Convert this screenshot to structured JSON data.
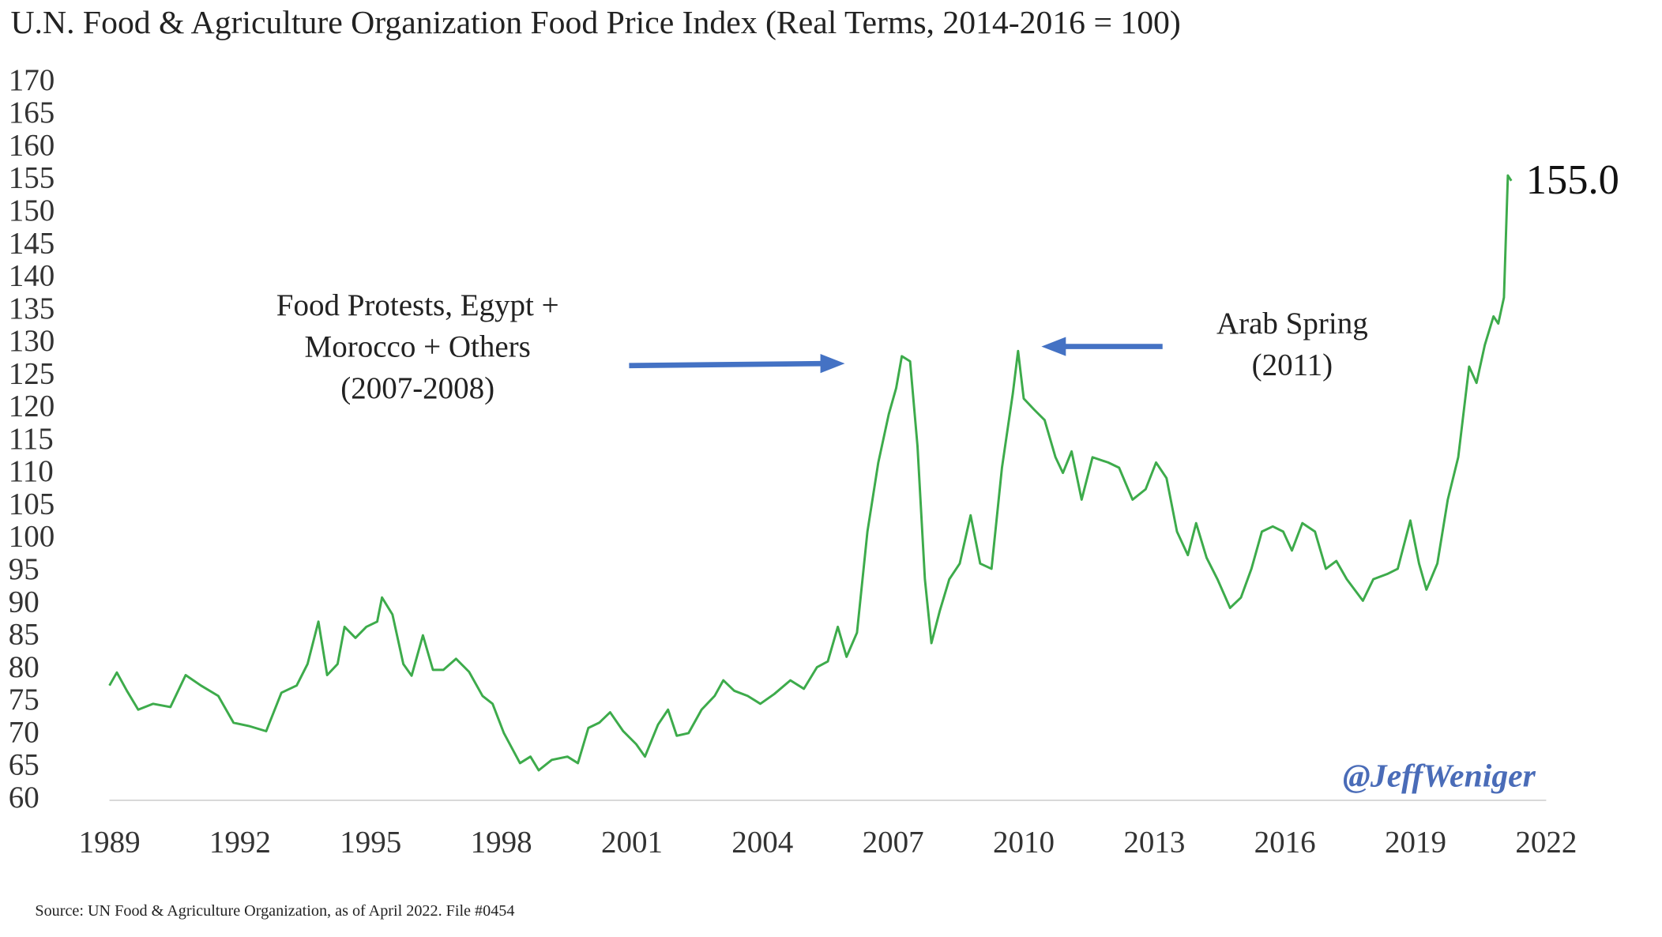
{
  "chart_data": {
    "type": "line",
    "title": "U.N. Food & Agriculture Organization Food Price Index (Real Terms, 2014-2016 = 100)",
    "xlim": [
      1989,
      2022
    ],
    "xticks": [
      1989,
      1992,
      1995,
      1998,
      2001,
      2004,
      2007,
      2010,
      2013,
      2016,
      2019,
      2022
    ],
    "ylim": [
      60,
      170
    ],
    "yticks": [
      60,
      65,
      70,
      75,
      80,
      85,
      90,
      95,
      100,
      105,
      110,
      115,
      120,
      125,
      130,
      135,
      140,
      145,
      150,
      155,
      160,
      165,
      170
    ],
    "grid": false,
    "color": "#3dab4b",
    "x": [
      1989.0,
      1989.17,
      1989.4,
      1989.66,
      1990.0,
      1990.4,
      1990.75,
      1991.1,
      1991.5,
      1991.85,
      1992.2,
      1992.6,
      1992.95,
      1993.3,
      1993.55,
      1993.8,
      1994.0,
      1994.24,
      1994.4,
      1994.65,
      1994.9,
      1995.15,
      1995.26,
      1995.5,
      1995.75,
      1995.94,
      1996.2,
      1996.43,
      1996.67,
      1996.96,
      1997.26,
      1997.57,
      1997.8,
      1998.06,
      1998.43,
      1998.67,
      1998.86,
      1999.16,
      1999.52,
      1999.76,
      2000.0,
      2000.25,
      2000.5,
      2000.8,
      2001.1,
      2001.3,
      2001.6,
      2001.83,
      2002.03,
      2002.3,
      2002.6,
      2002.9,
      2003.1,
      2003.35,
      2003.66,
      2003.95,
      2004.27,
      2004.64,
      2004.95,
      2005.25,
      2005.5,
      2005.73,
      2005.93,
      2006.17,
      2006.41,
      2006.66,
      2006.9,
      2007.07,
      2007.2,
      2007.39,
      2007.56,
      2007.73,
      2007.88,
      2008.07,
      2008.29,
      2008.53,
      2008.78,
      2009.0,
      2009.26,
      2009.5,
      2009.75,
      2009.87,
      2010.0,
      2010.24,
      2010.48,
      2010.73,
      2010.9,
      2011.1,
      2011.33,
      2011.58,
      2011.94,
      2012.19,
      2012.5,
      2012.8,
      2013.04,
      2013.28,
      2013.52,
      2013.77,
      2013.96,
      2014.2,
      2014.45,
      2014.74,
      2014.99,
      2015.23,
      2015.47,
      2015.72,
      2015.96,
      2016.16,
      2016.4,
      2016.69,
      2016.94,
      2017.18,
      2017.42,
      2017.79,
      2018.03,
      2018.35,
      2018.59,
      2018.88,
      2019.08,
      2019.25,
      2019.5,
      2019.74,
      2019.98,
      2020.23,
      2020.4,
      2020.59,
      2020.79,
      2020.9,
      2021.03,
      2021.12,
      2021.2
    ],
    "values": [
      77.6,
      79.6,
      76.8,
      73.9,
      74.8,
      74.3,
      79.2,
      77.6,
      76.0,
      71.9,
      71.4,
      70.6,
      76.5,
      77.6,
      80.9,
      87.4,
      79.2,
      80.9,
      86.6,
      84.9,
      86.6,
      87.4,
      91.1,
      88.5,
      80.9,
      79.1,
      85.3,
      80.0,
      80.0,
      81.7,
      79.7,
      76.0,
      74.8,
      70.3,
      65.7,
      66.7,
      64.6,
      66.2,
      66.7,
      65.7,
      71.1,
      71.9,
      73.5,
      70.6,
      68.6,
      66.7,
      71.6,
      73.9,
      69.9,
      70.3,
      73.9,
      76.0,
      78.4,
      76.8,
      76.0,
      74.8,
      76.3,
      78.4,
      77.1,
      80.4,
      81.3,
      86.6,
      82.0,
      85.7,
      101.2,
      111.8,
      119.2,
      123.2,
      128.1,
      127.3,
      114.3,
      93.9,
      84.1,
      89.0,
      93.9,
      96.3,
      103.7,
      96.3,
      95.5,
      111.0,
      122.4,
      128.9,
      121.6,
      119.9,
      118.3,
      112.6,
      110.2,
      113.5,
      106.1,
      112.6,
      111.8,
      111.0,
      106.1,
      107.7,
      111.8,
      109.4,
      101.2,
      97.6,
      102.5,
      97.2,
      93.9,
      89.5,
      91.1,
      95.5,
      101.2,
      102.0,
      101.2,
      98.3,
      102.5,
      101.2,
      95.5,
      96.7,
      93.9,
      90.6,
      93.9,
      94.7,
      95.5,
      102.9,
      96.3,
      92.3,
      96.3,
      106.1,
      112.6,
      126.5,
      124.0,
      129.8,
      134.2,
      133.1,
      137.1,
      155.8,
      155.0
    ],
    "annotations": [
      "155.0",
      "Food Protests, Egypt +",
      "Morocco + Others",
      "(2007-2008)",
      "Arab Spring",
      "(2011)"
    ],
    "watermark": "@JeffWeniger",
    "source": "Source: UN Food & Agriculture Organization, as of April 2022. File #0454"
  }
}
